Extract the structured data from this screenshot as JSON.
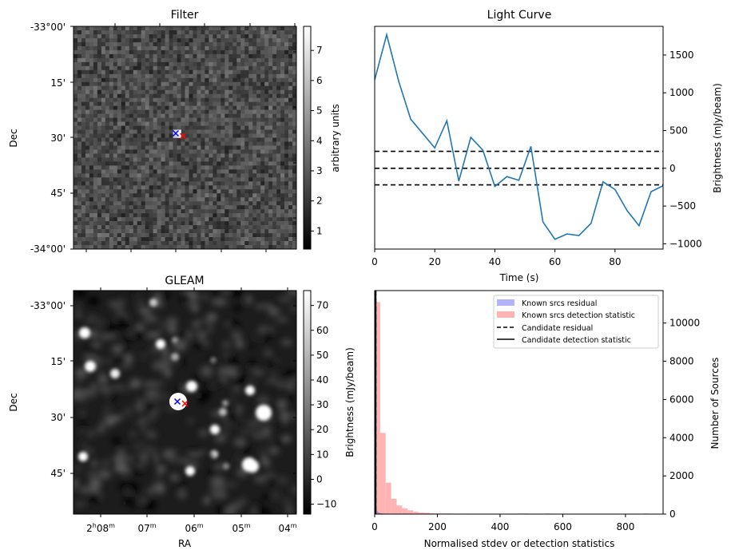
{
  "chart_data": [
    {
      "type": "heatmap",
      "title": "Filter",
      "xlabel": "",
      "ylabel": "Dec",
      "ytick_labels": [
        "-33°00'",
        "15'",
        "30'",
        "45'",
        "-34°00'"
      ],
      "colorbar": {
        "label": "arbitrary units",
        "tick_labels": [
          "1",
          "2",
          "3",
          "4",
          "5",
          "6",
          "7"
        ],
        "range": [
          0.4,
          7.8
        ],
        "colormap": "gray"
      },
      "markers": [
        {
          "name": "blue-cross",
          "color": "#0000ff",
          "symbol": "x"
        },
        {
          "name": "red-cross",
          "color": "#ff0000",
          "symbol": "x"
        }
      ]
    },
    {
      "type": "line",
      "title": "Light Curve",
      "xlabel": "Time (s)",
      "ylabel": "Brightness (mJy/beam)",
      "xlim": [
        0,
        96
      ],
      "ylim": [
        -1070,
        1880
      ],
      "xticks": [
        0,
        20,
        40,
        60,
        80
      ],
      "yticks": [
        -1000,
        -500,
        0,
        500,
        1000,
        1500
      ],
      "ytick_labels": [
        "−1000",
        "−500",
        "0",
        "500",
        "1000",
        "1500"
      ],
      "series": [
        {
          "name": "light curve",
          "color": "#1f77b4",
          "x": [
            0,
            4,
            8,
            12,
            16,
            20,
            24,
            28,
            32,
            36,
            40,
            44,
            48,
            52,
            56,
            60,
            64,
            68,
            72,
            76,
            80,
            84,
            88,
            92,
            96
          ],
          "y": [
            1170,
            1770,
            1150,
            650,
            460,
            270,
            630,
            -170,
            410,
            240,
            -240,
            -110,
            -160,
            290,
            -710,
            -940,
            -870,
            -890,
            -730,
            -180,
            -280,
            -560,
            -760,
            -310,
            -230
          ]
        }
      ],
      "hlines": [
        {
          "y": 225,
          "style": "dashed",
          "color": "#000000"
        },
        {
          "y": 0,
          "style": "dashed",
          "color": "#000000"
        },
        {
          "y": -220,
          "style": "dashed",
          "color": "#000000"
        }
      ]
    },
    {
      "type": "heatmap",
      "title": "GLEAM",
      "xlabel": "RA",
      "ylabel": "Dec",
      "xtick_labels": [
        {
          "main": "2",
          "sup1": "h",
          "mid": "08",
          "sup2": "m"
        },
        {
          "main": "",
          "sup1": "",
          "mid": "07",
          "sup2": "m"
        },
        {
          "main": "",
          "sup1": "",
          "mid": "06",
          "sup2": "m"
        },
        {
          "main": "",
          "sup1": "",
          "mid": "05",
          "sup2": "m"
        },
        {
          "main": "",
          "sup1": "",
          "mid": "04",
          "sup2": "m"
        }
      ],
      "ytick_labels": [
        "-33°00'",
        "15'",
        "30'",
        "45'"
      ],
      "colorbar": {
        "label": "Brightness (mJy/beam)",
        "tick_labels": [
          "−10",
          "0",
          "10",
          "20",
          "30",
          "40",
          "50",
          "60",
          "70"
        ],
        "range": [
          -14,
          76
        ],
        "colormap": "gray"
      },
      "markers": [
        {
          "name": "blue-cross",
          "color": "#0000ff",
          "symbol": "x"
        },
        {
          "name": "red-cross",
          "color": "#ff0000",
          "symbol": "x"
        }
      ]
    },
    {
      "type": "bar",
      "title": "",
      "xlabel": "Normalised stdev or detection statistics",
      "ylabel": "Number of Sources",
      "xlim": [
        0,
        920
      ],
      "ylim": [
        0,
        11700
      ],
      "xticks": [
        0,
        200,
        400,
        600,
        800
      ],
      "yticks": [
        0,
        2000,
        4000,
        6000,
        8000,
        10000
      ],
      "bin_width": 17.5,
      "series": [
        {
          "name": "Known srcs residual",
          "color": "#0000ff",
          "alpha": 0.3,
          "bin_starts": [
            0,
            5,
            10,
            15,
            20,
            25,
            30,
            35,
            40,
            45
          ],
          "counts": [
            350,
            150,
            90,
            60,
            40,
            30,
            25,
            20,
            15,
            10
          ]
        },
        {
          "name": "Known srcs detection statistic",
          "color": "#ff0000",
          "alpha": 0.3,
          "bin_starts": [
            0,
            17.5,
            35,
            52.5,
            70,
            87.5,
            105,
            122.5,
            140,
            157.5,
            175,
            192.5,
            210,
            227.5,
            245,
            262.5,
            280,
            297.5,
            315,
            332.5,
            350,
            367.5,
            385,
            402.5,
            420,
            455,
            472.5,
            542.5,
            857.5
          ],
          "counts": [
            11100,
            4250,
            1650,
            800,
            450,
            300,
            200,
            120,
            80,
            70,
            40,
            35,
            30,
            30,
            25,
            25,
            25,
            20,
            20,
            20,
            20,
            20,
            20,
            20,
            20,
            30,
            30,
            30,
            30
          ]
        }
      ],
      "vlines": [
        {
          "name": "Candidate residual",
          "x": 3,
          "style": "dashed",
          "color": "#000000"
        },
        {
          "name": "Candidate detection statistic",
          "x": 3,
          "style": "solid",
          "color": "#000000"
        }
      ],
      "legend": {
        "placement": "top-right",
        "entries": [
          {
            "label": "Known srcs residual",
            "kind": "patch",
            "color": "#b3b3ff"
          },
          {
            "label": "Known srcs detection statistic",
            "kind": "patch",
            "color": "#ffb3b3"
          },
          {
            "label": "Candidate residual",
            "kind": "dashed",
            "color": "#000000"
          },
          {
            "label": "Candidate detection statistic",
            "kind": "solid",
            "color": "#000000"
          }
        ]
      }
    }
  ]
}
